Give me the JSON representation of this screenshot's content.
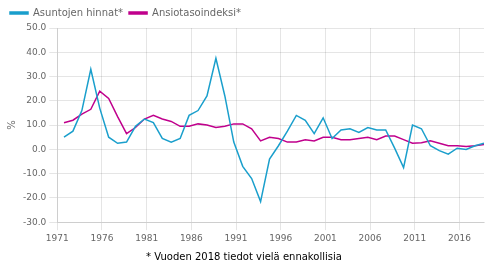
{
  "chart_data": {
    "type": "line",
    "ylabel": "%",
    "footnote": "* Vuoden 2018 tiedot vielä ennakollisia",
    "x": [
      1971.75,
      1972.75,
      1973.75,
      1974.75,
      1975.75,
      1976.75,
      1977.75,
      1978.75,
      1979.75,
      1980.75,
      1981.75,
      1982.75,
      1983.75,
      1984.75,
      1985.75,
      1986.75,
      1987.75,
      1988.75,
      1989.75,
      1990.75,
      1991.75,
      1992.75,
      1993.75,
      1994.75,
      1995.75,
      1996.75,
      1997.75,
      1998.75,
      1999.75,
      2000.75,
      2001.75,
      2002.75,
      2003.75,
      2004.75,
      2005.75,
      2006.75,
      2007.75,
      2008.75,
      2009.75,
      2010.75,
      2011.75,
      2012.75,
      2013.75,
      2014.75,
      2015.75,
      2016.75,
      2017.75,
      2018.75
    ],
    "series": [
      {
        "name": "Asuntojen hinnat*",
        "color": "#1a9fcc",
        "values": [
          5.0,
          7.5,
          16.0,
          33.0,
          17.0,
          5.0,
          2.5,
          3.0,
          9.5,
          12.5,
          11.0,
          4.5,
          3.0,
          4.5,
          14.0,
          16.0,
          22.0,
          37.5,
          22.0,
          3.0,
          -7.0,
          -12.0,
          -21.5,
          -4.0,
          1.5,
          7.5,
          14.0,
          12.0,
          6.5,
          13.0,
          4.5,
          8.0,
          8.5,
          7.0,
          9.0,
          8.0,
          8.0,
          0.5,
          -7.5,
          10.0,
          8.5,
          1.5,
          -0.5,
          -2.0,
          0.5,
          0.0,
          1.5,
          2.5
        ]
      },
      {
        "name": "Ansiotasoindeksi*",
        "color": "#c0008c",
        "values": [
          11.0,
          12.0,
          14.5,
          16.5,
          24.0,
          21.0,
          13.5,
          6.5,
          9.0,
          12.5,
          14.0,
          12.5,
          11.5,
          9.5,
          9.5,
          10.5,
          10.0,
          9.0,
          9.5,
          10.5,
          10.5,
          8.5,
          3.5,
          5.0,
          4.5,
          3.0,
          3.0,
          4.0,
          3.5,
          5.0,
          5.0,
          4.0,
          4.0,
          4.5,
          5.0,
          4.0,
          5.5,
          5.5,
          4.0,
          2.5,
          2.7,
          3.5,
          2.5,
          1.5,
          1.5,
          1.2,
          1.5,
          2.0
        ]
      }
    ],
    "xlim": [
      1971,
      2018.75
    ],
    "xticks": [
      1971,
      1976,
      1981,
      1986,
      1991,
      1996,
      2001,
      2006,
      2011,
      2016
    ],
    "ylim": [
      -30.0,
      50.0
    ],
    "yticks": [
      {
        "value": -30.0,
        "label": "-30.0"
      },
      {
        "value": -20.0,
        "label": "-20.0"
      },
      {
        "value": -10.0,
        "label": "-10.0"
      },
      {
        "value": 0.0,
        "label": "0.0"
      },
      {
        "value": 10.0,
        "label": "10.0"
      },
      {
        "value": 20.0,
        "label": "20.0"
      },
      {
        "value": 30.0,
        "label": "30.0"
      },
      {
        "value": 40.0,
        "label": "40.0"
      },
      {
        "value": 50.0,
        "label": "50.0"
      }
    ],
    "grid": true,
    "legend": "upper left"
  }
}
